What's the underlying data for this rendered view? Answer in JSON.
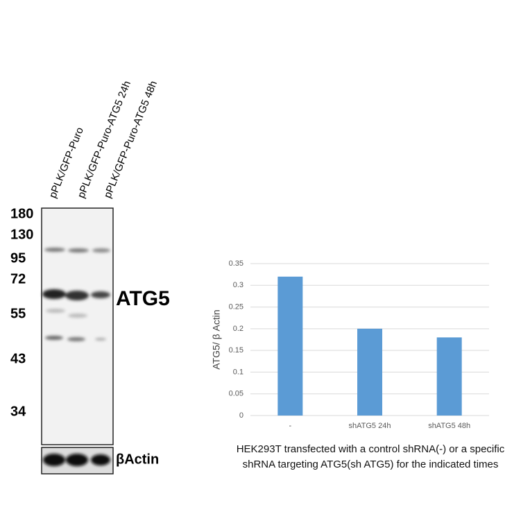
{
  "blot": {
    "lanes": [
      "pPLK/GFP-Puro",
      "pPLK/GFP-Puro-ATG5 24h",
      "pPLK/GFP-Puro-ATG5 48h"
    ],
    "markers": [
      "180",
      "130",
      "95",
      "72",
      "55",
      "43",
      "34"
    ],
    "target_label": "ATG5",
    "loading_label": "βActin"
  },
  "chart_data": {
    "type": "bar",
    "y_label": "ATG5/ β Actin",
    "categories": [
      "-",
      "shATG5 24h",
      "shATG5 48h"
    ],
    "values": [
      0.32,
      0.2,
      0.18
    ],
    "color": "#5b9bd5",
    "ylim": [
      0,
      0.35
    ],
    "yticks": [
      0,
      0.05,
      0.1,
      0.15,
      0.2,
      0.25,
      0.3,
      0.35
    ],
    "grid": true,
    "caption": [
      "HEK293T transfected with a control shRNA(-) or a specific",
      "shRNA targeting ATG5(sh ATG5) for the indicated times"
    ]
  }
}
